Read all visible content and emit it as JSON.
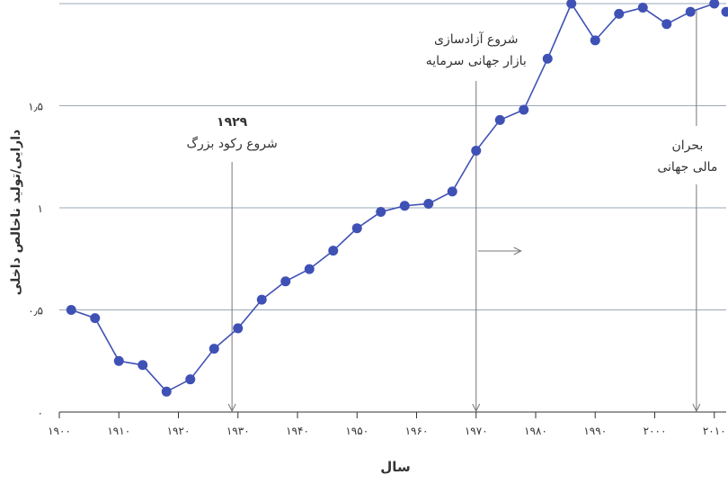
{
  "chart_data": {
    "type": "line",
    "title": "",
    "xlabel": "سال",
    "ylabel": "دارایی/تولید ناخالص داخلی",
    "xlim": [
      1900,
      2012
    ],
    "ylim": [
      0,
      2
    ],
    "x_ticks": [
      1900,
      1910,
      1920,
      1930,
      1940,
      1950,
      1960,
      1970,
      1980,
      1990,
      2000,
      2010
    ],
    "x_tick_labels": [
      "۱۹۰۰",
      "۱۹۱۰",
      "۱۹۲۰",
      "۱۹۳۰",
      "۱۹۴۰",
      "۱۹۵۰",
      "۱۹۶۰",
      "۱۹۷۰",
      "۱۹۸۰",
      "۱۹۹۰",
      "۲۰۰۰",
      "۲۰۱۰"
    ],
    "y_ticks": [
      0,
      0.5,
      1,
      1.5,
      2
    ],
    "y_tick_labels": [
      "۰",
      "۰٫۵",
      "۱",
      "۱٫۵",
      ""
    ],
    "grid": "horizontal",
    "series": [
      {
        "name": "",
        "color": "#3f51b5",
        "x": [
          1902,
          1906,
          1910,
          1914,
          1918,
          1922,
          1926,
          1930,
          1934,
          1938,
          1942,
          1946,
          1950,
          1954,
          1958,
          1962,
          1966,
          1970,
          1974,
          1978,
          1982,
          1986,
          1990,
          1994,
          1998,
          2002,
          2006,
          2010
        ],
        "y": [
          0.5,
          0.46,
          0.25,
          0.23,
          0.1,
          0.16,
          0.31,
          0.41,
          0.55,
          0.64,
          0.7,
          0.79,
          0.9,
          0.98,
          1.01,
          1.02,
          1.08,
          1.28,
          1.43,
          1.48,
          1.73,
          2.0,
          1.82,
          1.95,
          1.98,
          1.9,
          1.96,
          2.0
        ]
      },
      {
        "name": "",
        "color": "#3f51b5",
        "x": [
          2012
        ],
        "y": [
          1.96
        ]
      }
    ],
    "annotations": [
      {
        "year": 1929,
        "label_lines": [
          "۱۹۲۹",
          "شروع رکود بزرگ"
        ]
      },
      {
        "year": 1970,
        "label_lines": [
          "شروع آزادسازی",
          "بازار جهانی سرمایه"
        ]
      },
      {
        "year": 2007,
        "label_lines": [
          "بحران",
          "مالی جهانی"
        ]
      }
    ]
  }
}
